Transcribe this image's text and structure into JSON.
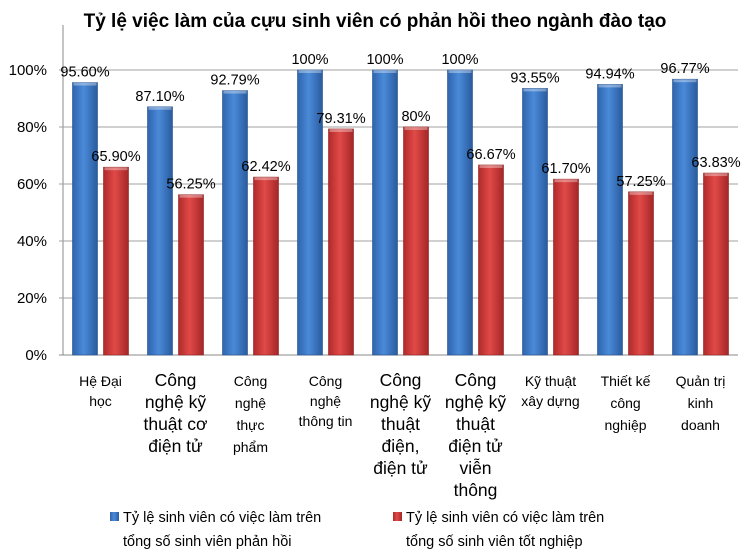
{
  "chart_data": {
    "type": "bar",
    "title": "Tỷ lệ việc làm của cựu sinh viên có phản hồi theo ngành đào tạo",
    "categories": [
      "Hệ Đại\nhọc",
      "Công\nnghệ kỹ\nthuật cơ\nđiện tử",
      "Công\nnghệ\nthực\nphẩm",
      "Công\nnghệ\nthông tin",
      "Công\nnghệ kỹ\nthuật\nđiện,\nđiện tử",
      "Công\nnghệ kỹ\nthuật\nđiện tử\nviễn\nthông",
      "Kỹ thuật\nxây dựng",
      "Thiết kế\ncông\nnghiệp",
      "Quản trị\nkinh\ndoanh"
    ],
    "series": [
      {
        "name": "Tỷ lệ sinh viên có việc làm trên\ntổng số sinh viên phản hồi",
        "color": "#3a78c9",
        "values": [
          95.6,
          87.1,
          92.79,
          100,
          100,
          100,
          93.55,
          94.94,
          96.77
        ],
        "labels": [
          "95.60%",
          "87.10%",
          "92.79%",
          "100%",
          "100%",
          "100%",
          "93.55%",
          "94.94%",
          "96.77%"
        ]
      },
      {
        "name": "Tỷ lệ sinh viên có việc làm trên\ntổng số sinh viên tốt nghiệp",
        "color": "#d0393a",
        "values": [
          65.9,
          56.25,
          62.42,
          79.31,
          80,
          66.67,
          61.7,
          57.25,
          63.83
        ],
        "labels": [
          "65.90%",
          "56.25%",
          "62.42%",
          "79.31%",
          "80%",
          "66.67%",
          "61.70%",
          "57.25%",
          "63.83%"
        ]
      }
    ],
    "yticks": [
      "0%",
      "20%",
      "40%",
      "60%",
      "80%",
      "100%"
    ],
    "ylim": [
      0,
      100
    ],
    "grid": true,
    "legend": "bottom"
  }
}
